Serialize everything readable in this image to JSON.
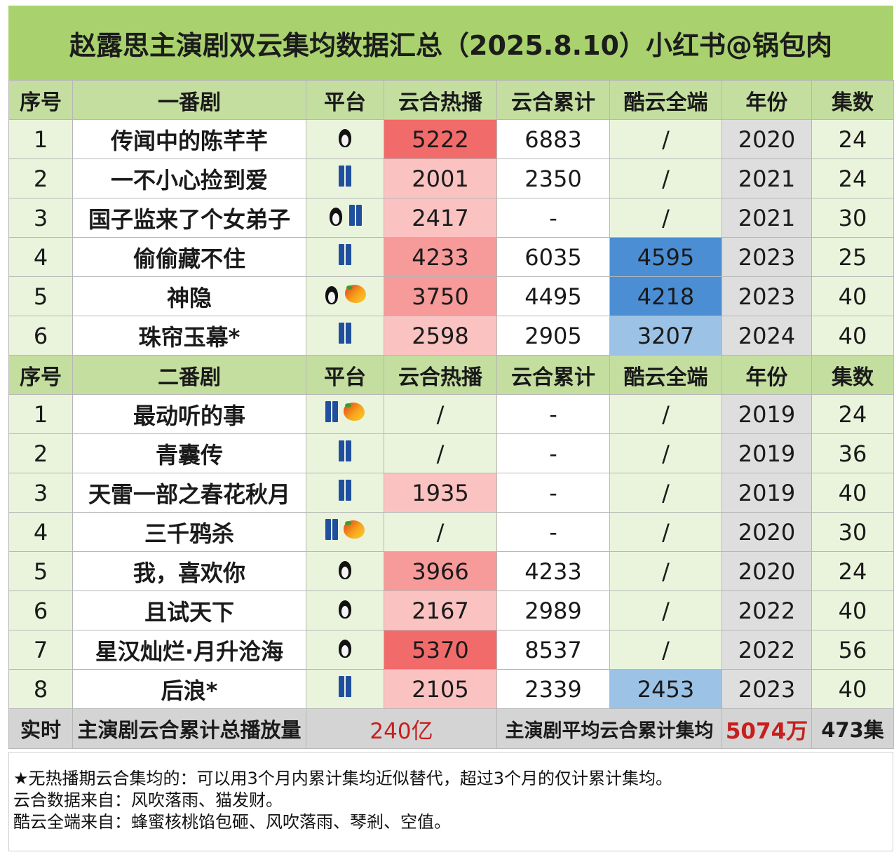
{
  "title": "赵露思主演剧双云集均数据汇总（2025.8.10）小红书@锅包肉",
  "headers": {
    "index": "序号",
    "lead_group": "一番剧",
    "second_group": "二番剧",
    "platform": "平台",
    "cloud_hot": "云合热播",
    "cloud_total": "云合累计",
    "kuyun": "酷云全端",
    "year": "年份",
    "episodes": "集数"
  },
  "platform_icons": {
    "penguin": "penguin-icon",
    "jeans": "jeans-icon",
    "mango": "mango-icon"
  },
  "colors": {
    "title_bg": "#a9d26e",
    "header_bg": "#c4dea0",
    "heat_high": "#f26b6b",
    "heat_mid": "#f79a9a",
    "heat_low": "#fbc2c2",
    "kuyun_dark": "#4b8ed4",
    "kuyun_light": "#9cc2e6",
    "summary_value": "#c81e1e"
  },
  "lead_dramas": [
    {
      "index": "1",
      "name": "传闻中的陈芊芊",
      "platforms": [
        "penguin"
      ],
      "cloud_hot": "5222",
      "cloud_total": "6883",
      "kuyun": "/",
      "year": "2020",
      "episodes": "24",
      "heat": "hi",
      "ku": ""
    },
    {
      "index": "2",
      "name": "一不小心捡到爱",
      "platforms": [
        "jeans"
      ],
      "cloud_hot": "2001",
      "cloud_total": "2350",
      "kuyun": "/",
      "year": "2021",
      "episodes": "24",
      "heat": "lo",
      "ku": ""
    },
    {
      "index": "3",
      "name": "国子监来了个女弟子",
      "platforms": [
        "penguin",
        "jeans"
      ],
      "cloud_hot": "2417",
      "cloud_total": "-",
      "kuyun": "/",
      "year": "2021",
      "episodes": "30",
      "heat": "lo",
      "ku": ""
    },
    {
      "index": "4",
      "name": "偷偷藏不住",
      "platforms": [
        "jeans"
      ],
      "cloud_hot": "4233",
      "cloud_total": "6035",
      "kuyun": "4595",
      "year": "2023",
      "episodes": "25",
      "heat": "mid",
      "ku": "dark"
    },
    {
      "index": "5",
      "name": "神隐",
      "platforms": [
        "penguin",
        "mango"
      ],
      "cloud_hot": "3750",
      "cloud_total": "4495",
      "kuyun": "4218",
      "year": "2023",
      "episodes": "40",
      "heat": "mid",
      "ku": "dark"
    },
    {
      "index": "6",
      "name": "珠帘玉幕*",
      "platforms": [
        "jeans"
      ],
      "cloud_hot": "2598",
      "cloud_total": "2905",
      "kuyun": "3207",
      "year": "2024",
      "episodes": "40",
      "heat": "lo",
      "ku": "light"
    }
  ],
  "second_dramas": [
    {
      "index": "1",
      "name": "最动听的事",
      "platforms": [
        "jeans",
        "mango"
      ],
      "cloud_hot": "/",
      "cloud_total": "-",
      "kuyun": "/",
      "year": "2019",
      "episodes": "24",
      "heat": "none",
      "ku": ""
    },
    {
      "index": "2",
      "name": "青囊传",
      "platforms": [
        "jeans"
      ],
      "cloud_hot": "/",
      "cloud_total": "-",
      "kuyun": "/",
      "year": "2019",
      "episodes": "36",
      "heat": "none",
      "ku": ""
    },
    {
      "index": "3",
      "name": "天雷一部之春花秋月",
      "platforms": [
        "jeans"
      ],
      "cloud_hot": "1935",
      "cloud_total": "-",
      "kuyun": "/",
      "year": "2019",
      "episodes": "40",
      "heat": "lo",
      "ku": ""
    },
    {
      "index": "4",
      "name": "三千鸦杀",
      "platforms": [
        "jeans",
        "mango"
      ],
      "cloud_hot": "/",
      "cloud_total": "-",
      "kuyun": "/",
      "year": "2020",
      "episodes": "30",
      "heat": "none",
      "ku": ""
    },
    {
      "index": "5",
      "name": "我，喜欢你",
      "platforms": [
        "penguin"
      ],
      "cloud_hot": "3966",
      "cloud_total": "4233",
      "kuyun": "/",
      "year": "2020",
      "episodes": "24",
      "heat": "mid",
      "ku": ""
    },
    {
      "index": "6",
      "name": "且试天下",
      "platforms": [
        "penguin"
      ],
      "cloud_hot": "2167",
      "cloud_total": "2989",
      "kuyun": "/",
      "year": "2022",
      "episodes": "40",
      "heat": "lo",
      "ku": ""
    },
    {
      "index": "7",
      "name": "星汉灿烂·月升沧海",
      "platforms": [
        "penguin"
      ],
      "cloud_hot": "5370",
      "cloud_total": "8537",
      "kuyun": "/",
      "year": "2022",
      "episodes": "56",
      "heat": "hi",
      "ku": ""
    },
    {
      "index": "8",
      "name": "后浪*",
      "platforms": [
        "jeans"
      ],
      "cloud_hot": "2105",
      "cloud_total": "2339",
      "kuyun": "2453",
      "year": "2023",
      "episodes": "40",
      "heat": "lo",
      "ku": "light"
    }
  ],
  "summary": {
    "label": "实时",
    "total_label": "主演剧云合累计总播放量",
    "total_value": "240亿",
    "avg_label": "主演剧平均云合累计集均",
    "avg_value": "5074万",
    "episodes_total": "473集"
  },
  "notes": [
    "★无热播期云合集均的：可以用3个月内累计集均近似替代，超过3个月的仅计累计集均。",
    "云合数据来自：风吹落雨、猫发财。",
    "酷云全端来自：蜂蜜核桃馅包砸、风吹落雨、琴剎、空值。"
  ]
}
